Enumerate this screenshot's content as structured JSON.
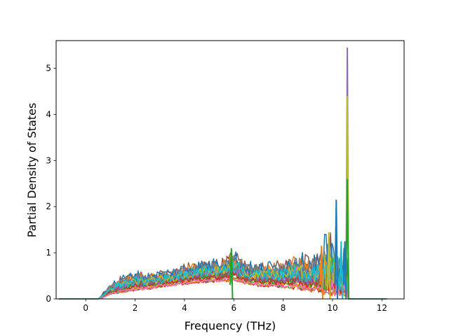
{
  "chart_data": {
    "type": "line",
    "title": "",
    "xlabel": "Frequency (THz)",
    "ylabel": "Partial Density of States",
    "xlim": [
      -1.2,
      12.9
    ],
    "ylim": [
      0,
      5.6
    ],
    "x_ticks": [
      0,
      2,
      4,
      6,
      8,
      10,
      12
    ],
    "y_ticks": [
      0,
      1,
      2,
      3,
      4,
      5
    ],
    "grid": false,
    "legend": "none",
    "palette": [
      "#1f77b4",
      "#ff7f0e",
      "#2ca02c",
      "#d62728",
      "#9467bd",
      "#8c564b",
      "#e377c2",
      "#7f7f7f",
      "#bcbd22",
      "#17becf"
    ],
    "envelope": {
      "x": [
        -1.1,
        0.5,
        0.6,
        1.0,
        1.5,
        2.0,
        2.5,
        3.0,
        3.5,
        4.0,
        4.5,
        5.0,
        5.5,
        6.0,
        6.5,
        7.0,
        7.5,
        8.0,
        8.5,
        9.0,
        9.5,
        10.0,
        10.3,
        10.55,
        10.6,
        10.65,
        12.2
      ],
      "max": [
        0,
        0,
        0.05,
        0.35,
        0.5,
        0.6,
        0.55,
        0.6,
        0.65,
        0.75,
        0.8,
        0.85,
        0.85,
        1.05,
        0.8,
        0.75,
        0.8,
        0.8,
        1.0,
        0.9,
        1.0,
        1.45,
        1.0,
        2.6,
        5.45,
        0,
        0
      ],
      "min": [
        0,
        0,
        0,
        0.05,
        0.08,
        0.12,
        0.15,
        0.2,
        0.22,
        0.25,
        0.28,
        0.28,
        0.3,
        0.28,
        0.25,
        0.2,
        0.18,
        0.15,
        0.1,
        0.05,
        0.02,
        0.0,
        0.0,
        0.0,
        0.0,
        0,
        0
      ]
    },
    "peaks": [
      {
        "x": 10.6,
        "y": 5.45,
        "color": "#9467bd"
      },
      {
        "x": 10.6,
        "y": 4.4,
        "color": "#bcbd22"
      },
      {
        "x": 10.6,
        "y": 2.6,
        "color": "#2ca02c"
      },
      {
        "x": 10.15,
        "y": 2.15,
        "color": "#1f77b4"
      },
      {
        "x": 10.35,
        "y": 1.25,
        "color": "#17becf"
      },
      {
        "x": 10.5,
        "y": 1.25,
        "color": "#1f77b4"
      },
      {
        "x": 9.85,
        "y": 1.45,
        "color": "#bcbd22"
      },
      {
        "x": 9.55,
        "y": 1.15,
        "color": "#ff7f0e"
      },
      {
        "x": 5.9,
        "y": 1.1,
        "color": "#2ca02c"
      }
    ],
    "series_count": 30
  }
}
